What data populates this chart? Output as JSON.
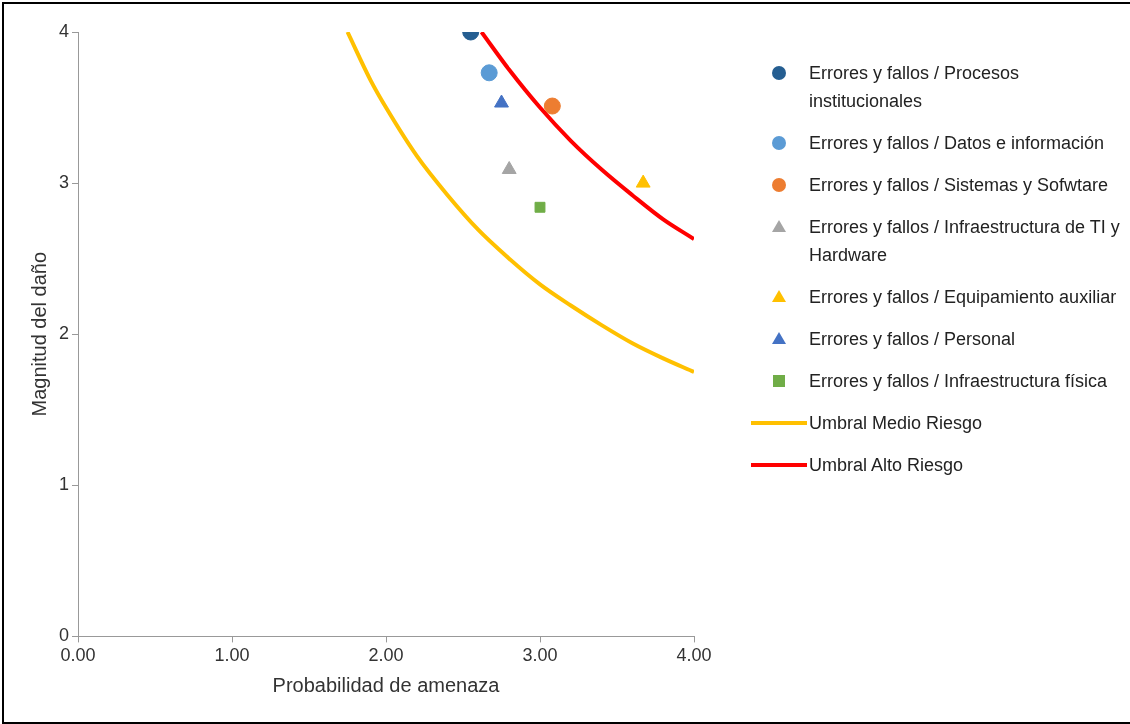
{
  "chart_data": {
    "type": "scatter",
    "xlabel": "Probabilidad de amenaza",
    "ylabel": "Magnitud del daño",
    "xlim": [
      0,
      4
    ],
    "ylim": [
      0,
      4
    ],
    "xticks": [
      {
        "value": 0,
        "label": "0.00"
      },
      {
        "value": 1,
        "label": "1.00"
      },
      {
        "value": 2,
        "label": "2.00"
      },
      {
        "value": 3,
        "label": "3.00"
      },
      {
        "value": 4,
        "label": "4.00"
      }
    ],
    "yticks": [
      0,
      1,
      2,
      3,
      4
    ],
    "grid": false,
    "legend": "right",
    "series": [
      {
        "name": "Errores y fallos  / Procesos institucionales",
        "color": "#255e91",
        "marker": "circle",
        "x": [
          2.55
        ],
        "values": [
          4
        ]
      },
      {
        "name": "Errores y fallos  / Datos e información",
        "color": "#5b9bd5",
        "marker": "circle",
        "x": [
          2.67
        ],
        "values": [
          3.73
        ]
      },
      {
        "name": "Errores y fallos  / Sistemas y Sofwtare",
        "color": "#ed7d31",
        "marker": "circle",
        "x": [
          3.08
        ],
        "values": [
          3.51
        ]
      },
      {
        "name": "Errores y fallos  / Infraestructura de TI y Hardware",
        "color": "#a5a5a5",
        "marker": "triangle",
        "x": [
          2.8
        ],
        "values": [
          3.09
        ]
      },
      {
        "name": "Errores y fallos  / Equipamiento auxiliar",
        "color": "#ffc000",
        "marker": "triangle",
        "x": [
          3.67
        ],
        "values": [
          3.0
        ]
      },
      {
        "name": "Errores y fallos  / Personal",
        "color": "#4472c4",
        "marker": "triangle",
        "x": [
          2.75
        ],
        "values": [
          3.53
        ]
      },
      {
        "name": "Errores y fallos  / Infraestructura física",
        "color": "#70ad47",
        "marker": "square",
        "x": [
          3.0
        ],
        "values": [
          2.84
        ]
      },
      {
        "name": "Umbral Medio Riesgo",
        "type": "line",
        "color": "#ffc000",
        "marker": "none",
        "x": [
          1.75,
          1.9,
          2.0,
          2.2,
          2.4,
          2.6,
          2.8,
          3.0,
          3.2,
          3.4,
          3.6,
          3.8,
          4.0
        ],
        "values": [
          4.0,
          3.68,
          3.5,
          3.18,
          2.92,
          2.69,
          2.5,
          2.33,
          2.19,
          2.06,
          1.94,
          1.84,
          1.75
        ]
      },
      {
        "name": "Umbral Alto Riesgo",
        "type": "line",
        "color": "#ff0000",
        "marker": "none",
        "x": [
          2.62,
          2.8,
          3.0,
          3.2,
          3.4,
          3.6,
          3.8,
          4.0
        ],
        "values": [
          4.0,
          3.75,
          3.5,
          3.28,
          3.09,
          2.92,
          2.76,
          2.63
        ]
      }
    ]
  }
}
